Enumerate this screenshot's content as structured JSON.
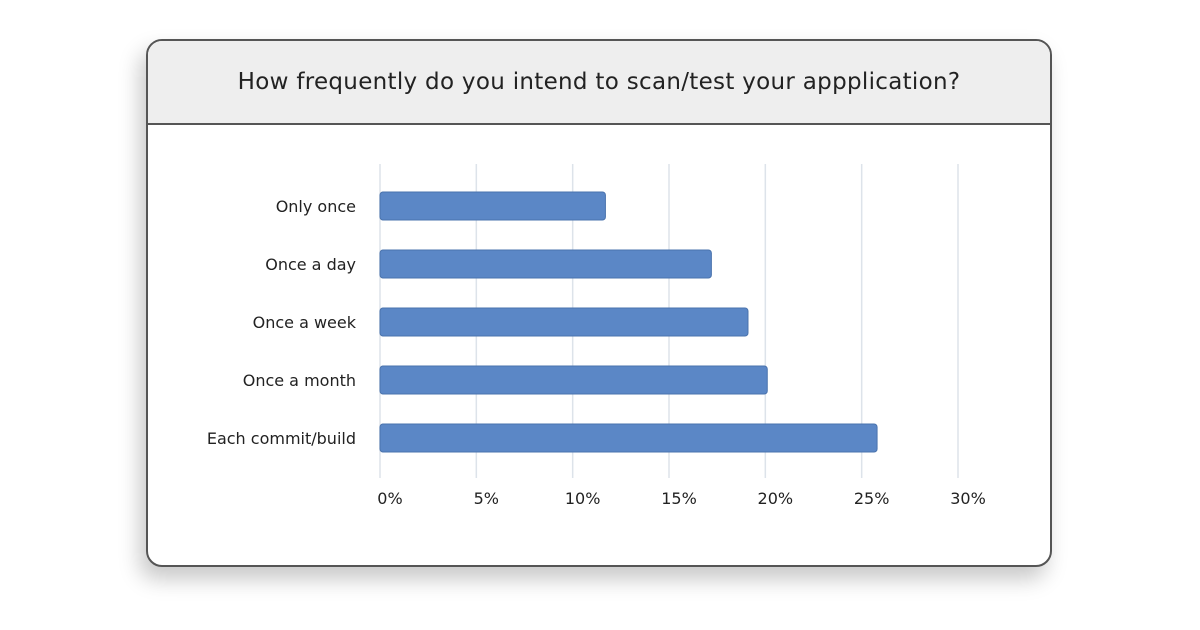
{
  "chart_data": {
    "type": "bar",
    "orientation": "horizontal",
    "title": "How frequently do you intend to scan/test your appplication?",
    "categories": [
      "Only once",
      "Once a day",
      "Once a week",
      "Once a month",
      "Each commit/build"
    ],
    "values": [
      11.7,
      17.2,
      19.1,
      20.1,
      25.8
    ],
    "xlim": [
      0,
      30
    ],
    "x_ticks": [
      "0%",
      "5%",
      "10%",
      "15%",
      "20%",
      "25%",
      "30%"
    ],
    "grid": true,
    "bar_color": "#5b87c6"
  }
}
